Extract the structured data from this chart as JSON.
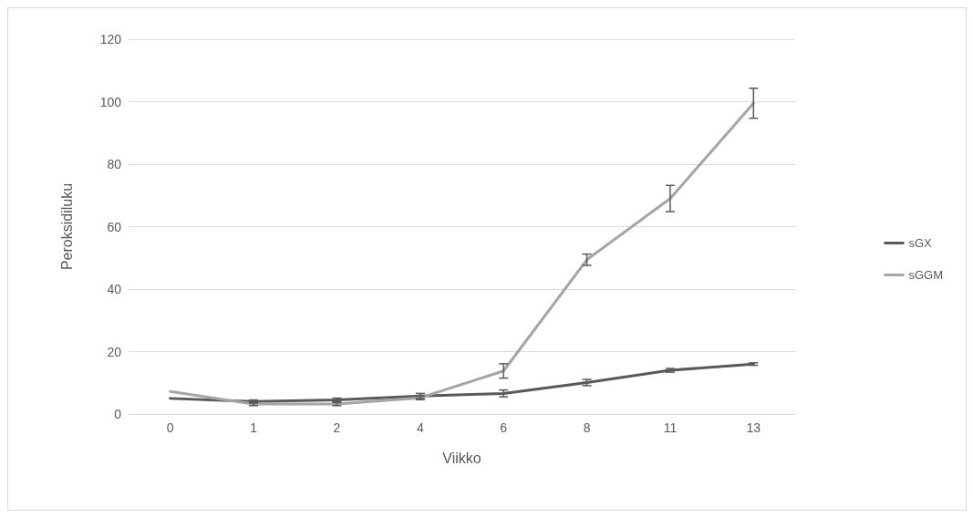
{
  "chart_data": {
    "type": "line",
    "xlabel": "Viikko",
    "ylabel": "Peroksidiluku",
    "categories": [
      "0",
      "1",
      "2",
      "4",
      "6",
      "8",
      "11",
      "13"
    ],
    "series": [
      {
        "name": "sGX",
        "color": "#595959",
        "values": [
          5,
          4,
          4.5,
          5.8,
          6.6,
          10.1,
          14,
          16
        ],
        "errors": [
          null,
          0.5,
          0.6,
          0.8,
          1.1,
          1,
          0.6,
          0.4
        ]
      },
      {
        "name": "sGGM",
        "color": "#a5a5a5",
        "values": [
          7.2,
          3.2,
          3.2,
          5.2,
          13.8,
          49.4,
          69,
          99.5
        ],
        "errors": [
          null,
          0.5,
          0.5,
          0.6,
          2.3,
          1.8,
          4.2,
          4.8
        ]
      }
    ],
    "ylim": [
      0,
      120
    ],
    "yticks": [
      0,
      20,
      40,
      60,
      80,
      100,
      120
    ],
    "grid": "y",
    "legend": "right",
    "marker": "none",
    "line_style": "solid"
  }
}
